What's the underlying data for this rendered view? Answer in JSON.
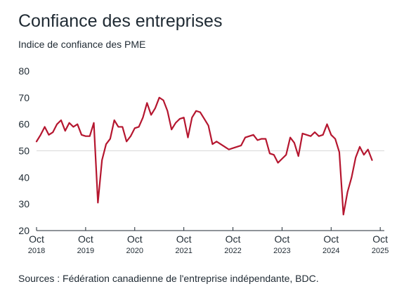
{
  "header": {
    "title": "Confiance des entreprises",
    "subtitle": "Indice de confiance des PME"
  },
  "footer": {
    "source": "Sources : Fédération canadienne de l'entreprise indépendante, BDC."
  },
  "colors": {
    "line": "#b5162f",
    "gridline": "#d9d9d9",
    "axis": "#1f2a33"
  },
  "chart_data": {
    "type": "line",
    "title": "Confiance des entreprises",
    "subtitle": "Indice de confiance des PME",
    "xlabel": "",
    "ylabel": "",
    "ylim": [
      20,
      80
    ],
    "xlim": [
      "2018-10",
      "2025-11"
    ],
    "yticks": [
      80,
      70,
      60,
      50,
      40,
      30,
      20
    ],
    "xticks": [
      {
        "x": "2018-10",
        "month": "Oct",
        "year": "2018"
      },
      {
        "x": "2019-10",
        "month": "Oct",
        "year": "2019"
      },
      {
        "x": "2020-10",
        "month": "Oct",
        "year": "2020"
      },
      {
        "x": "2021-10",
        "month": "Oct",
        "year": "2021"
      },
      {
        "x": "2022-10",
        "month": "Oct",
        "year": "2022"
      },
      {
        "x": "2023-10",
        "month": "Oct",
        "year": "2023"
      },
      {
        "x": "2024-10",
        "month": "Oct",
        "year": "2024"
      },
      {
        "x": "2025-10",
        "month": "Oct",
        "year": "2025"
      }
    ],
    "gridlines": [
      50
    ],
    "grid": false,
    "legend": "none",
    "series": [
      {
        "points": [
          [
            "2018-10",
            53.5
          ],
          [
            "2018-11",
            56
          ],
          [
            "2018-12",
            59
          ],
          [
            "2019-01",
            56
          ],
          [
            "2019-02",
            57
          ],
          [
            "2019-03",
            60
          ],
          [
            "2019-04",
            61.5
          ],
          [
            "2019-05",
            57.5
          ],
          [
            "2019-06",
            60.5
          ],
          [
            "2019-07",
            59
          ],
          [
            "2019-08",
            60
          ],
          [
            "2019-09",
            56
          ],
          [
            "2019-10",
            55.5
          ],
          [
            "2019-11",
            55.5
          ],
          [
            "2019-12",
            60.5
          ],
          [
            "2020-01",
            30.5
          ],
          [
            "2020-02",
            46.5
          ],
          [
            "2020-03",
            52.5
          ],
          [
            "2020-04",
            54.5
          ],
          [
            "2020-05",
            61.5
          ],
          [
            "2020-06",
            59
          ],
          [
            "2020-07",
            59
          ],
          [
            "2020-08",
            53.5
          ],
          [
            "2020-09",
            55.5
          ],
          [
            "2020-10",
            58.5
          ],
          [
            "2020-11",
            59
          ],
          [
            "2020-12",
            62.5
          ],
          [
            "2021-01",
            68
          ],
          [
            "2021-02",
            63.5
          ],
          [
            "2021-03",
            66
          ],
          [
            "2021-04",
            70
          ],
          [
            "2021-05",
            69
          ],
          [
            "2021-06",
            65
          ],
          [
            "2021-07",
            58
          ],
          [
            "2021-08",
            60.5
          ],
          [
            "2021-09",
            62
          ],
          [
            "2021-10",
            62.5
          ],
          [
            "2021-11",
            55
          ],
          [
            "2021-12",
            62.5
          ],
          [
            "2022-01",
            65
          ],
          [
            "2022-02",
            64.5
          ],
          [
            "2022-03",
            62
          ],
          [
            "2022-04",
            59.5
          ],
          [
            "2022-05",
            52.5
          ],
          [
            "2022-06",
            53.5
          ],
          [
            "2022-07",
            52.5
          ],
          [
            "2022-08",
            51.5
          ],
          [
            "2022-09",
            50.5
          ],
          [
            "2022-10",
            51
          ],
          [
            "2022-11",
            51.5
          ],
          [
            "2022-12",
            52
          ],
          [
            "2023-01",
            55
          ],
          [
            "2023-02",
            55.5
          ],
          [
            "2023-03",
            56
          ],
          [
            "2023-04",
            54
          ],
          [
            "2023-05",
            54.5
          ],
          [
            "2023-06",
            54.5
          ],
          [
            "2023-07",
            49
          ],
          [
            "2023-08",
            48.5
          ],
          [
            "2023-09",
            45.5
          ],
          [
            "2023-10",
            47
          ],
          [
            "2023-11",
            48.5
          ],
          [
            "2023-12",
            55
          ],
          [
            "2024-01",
            53
          ],
          [
            "2024-02",
            48
          ],
          [
            "2024-03",
            56.5
          ],
          [
            "2024-04",
            56
          ],
          [
            "2024-05",
            55.5
          ],
          [
            "2024-06",
            57
          ],
          [
            "2024-07",
            55.5
          ],
          [
            "2024-08",
            56
          ],
          [
            "2024-09",
            60
          ],
          [
            "2024-10",
            56
          ],
          [
            "2024-11",
            54.5
          ],
          [
            "2024-12",
            49.5
          ],
          [
            "2025-01",
            26
          ],
          [
            "2025-02",
            34.5
          ],
          [
            "2025-03",
            40
          ],
          [
            "2025-04",
            47.5
          ],
          [
            "2025-05",
            51.5
          ],
          [
            "2025-06",
            48.5
          ],
          [
            "2025-07",
            50.5
          ],
          [
            "2025-08",
            46.5
          ]
        ]
      }
    ]
  }
}
